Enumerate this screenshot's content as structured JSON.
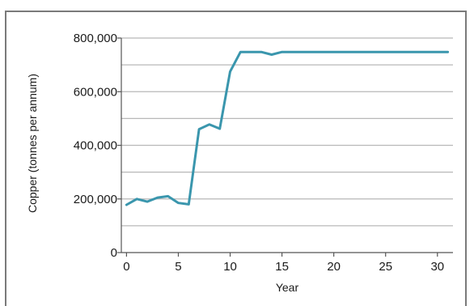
{
  "chart_data": {
    "type": "line",
    "xlabel": "Year",
    "ylabel": "Copper (tonnes per annum)",
    "xlim": [
      -0.5,
      31.5
    ],
    "ylim": [
      0,
      800000
    ],
    "x_ticks": [
      0,
      5,
      10,
      15,
      20,
      25,
      30
    ],
    "x_tick_labels": [
      "0",
      "5",
      "10",
      "15",
      "20",
      "25",
      "30"
    ],
    "y_ticks": [
      0,
      200000,
      400000,
      600000,
      800000
    ],
    "y_tick_labels": [
      "0",
      "200,000",
      "400,000",
      "600,000",
      "800,000"
    ],
    "grid": "horizontal every 100,000",
    "colors": {
      "line": "#3a96ad",
      "grid": "#b8b8b8",
      "frame": "#7a7a7a"
    },
    "series": [
      {
        "x": [
          0,
          1,
          2,
          3,
          4,
          5,
          6,
          7,
          8,
          9,
          10,
          11,
          12,
          13,
          14,
          15,
          16,
          17,
          18,
          19,
          20,
          21,
          22,
          23,
          24,
          25,
          26,
          27,
          28,
          29,
          30,
          31
        ],
        "values": [
          178000,
          200000,
          190000,
          205000,
          210000,
          185000,
          180000,
          460000,
          478000,
          462000,
          675000,
          748000,
          748000,
          748000,
          738000,
          748000,
          748000,
          748000,
          748000,
          748000,
          748000,
          748000,
          748000,
          748000,
          748000,
          748000,
          748000,
          748000,
          748000,
          748000,
          748000,
          748000
        ]
      }
    ]
  }
}
